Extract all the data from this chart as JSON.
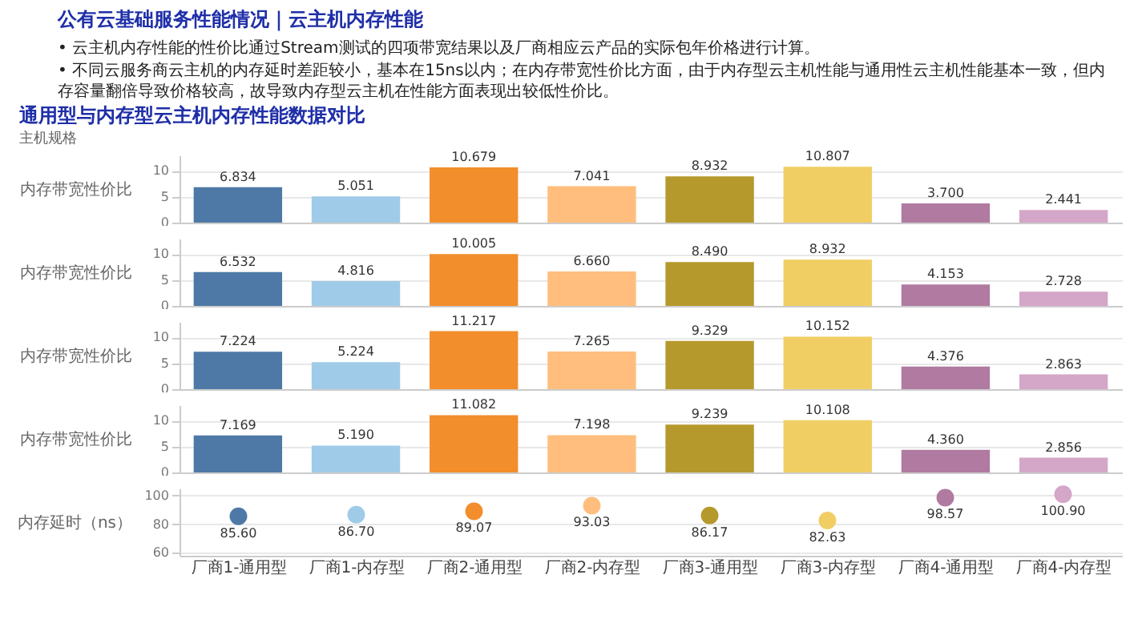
{
  "chart_data": [
    {
      "type": "other",
      "title": "公有云基础服务性能情况｜云主机内存性能",
      "annotations": [
        "•  云主机内存性能的性价比通过Stream测试的四项带宽结果以及厂商相应云产品的实际包年价格进行计算。",
        "•  不同云服务商云主机的内存延时差距较小，基本在15ns以内；在内存带宽性价比方面，由于内存型云主机性能与通用性云主机性能基本一致，但内存容量翻倍导致价格较高，故导致内存型云主机在性能方面表现出较低性价比。"
      ]
    },
    {
      "type": "bar",
      "title": "通用型与内存型云主机内存性能数据对比",
      "subtitle": "主机规格",
      "ylabel": "内存带宽性价比",
      "categories": [
        null,
        null,
        null,
        null,
        null,
        null,
        null,
        null
      ],
      "values": [
        6.834,
        5.051,
        10.679,
        7.041,
        8.932,
        10.807,
        3.7,
        2.441
      ],
      "value_labels": [
        "6.834",
        "5.051",
        "10.679",
        "7.041",
        "8.932",
        "10.807",
        "3.700",
        "2.441"
      ],
      "colors": [
        "#4e79a7",
        "#a0cbe8",
        "#f28e2b",
        "#ffbe7d",
        "#b6992d",
        "#f1ce63",
        "#b07aa1",
        "#d4a6c8"
      ],
      "ylim": [
        0,
        13
      ],
      "yticks": [
        0,
        5,
        10
      ],
      "grid": "y",
      "tick_labels": "y"
    },
    {
      "type": "bar",
      "ylabel": "内存带宽性价比",
      "categories": [
        null,
        null,
        null,
        null,
        null,
        null,
        null,
        null
      ],
      "values": [
        6.532,
        4.816,
        10.005,
        6.66,
        8.49,
        8.932,
        4.153,
        2.728
      ],
      "value_labels": [
        "6.532",
        "4.816",
        "10.005",
        "6.660",
        "8.490",
        "8.932",
        "4.153",
        "2.728"
      ],
      "colors": [
        "#4e79a7",
        "#a0cbe8",
        "#f28e2b",
        "#ffbe7d",
        "#b6992d",
        "#f1ce63",
        "#b07aa1",
        "#d4a6c8"
      ],
      "ylim": [
        0,
        13
      ],
      "yticks": [
        0,
        5,
        10
      ],
      "grid": "y",
      "tick_labels": "y"
    },
    {
      "type": "bar",
      "ylabel": "内存带宽性价比",
      "categories": [
        null,
        null,
        null,
        null,
        null,
        null,
        null,
        null
      ],
      "values": [
        7.224,
        5.224,
        11.217,
        7.265,
        9.329,
        10.152,
        4.376,
        2.863
      ],
      "value_labels": [
        "7.224",
        "5.224",
        "11.217",
        "7.265",
        "9.329",
        "10.152",
        "4.376",
        "2.863"
      ],
      "colors": [
        "#4e79a7",
        "#a0cbe8",
        "#f28e2b",
        "#ffbe7d",
        "#b6992d",
        "#f1ce63",
        "#b07aa1",
        "#d4a6c8"
      ],
      "ylim": [
        0,
        13
      ],
      "yticks": [
        0,
        5,
        10
      ],
      "grid": "y",
      "tick_labels": "y"
    },
    {
      "type": "bar",
      "ylabel": "内存带宽性价比",
      "categories": [
        null,
        null,
        null,
        null,
        null,
        null,
        null,
        null
      ],
      "values": [
        7.169,
        5.19,
        11.082,
        7.198,
        9.239,
        10.108,
        4.36,
        2.856
      ],
      "value_labels": [
        "7.169",
        "5.190",
        "11.082",
        "7.198",
        "9.239",
        "10.108",
        "4.360",
        "2.856"
      ],
      "colors": [
        "#4e79a7",
        "#a0cbe8",
        "#f28e2b",
        "#ffbe7d",
        "#b6992d",
        "#f1ce63",
        "#b07aa1",
        "#d4a6c8"
      ],
      "ylim": [
        0,
        13
      ],
      "yticks": [
        0,
        5,
        10
      ],
      "grid": "y",
      "tick_labels": "y"
    },
    {
      "type": "scatter",
      "ylabel": "内存延时（ns）",
      "categories": [
        "厂商1-通用型",
        "厂商1-内存型",
        "厂商2-通用型",
        "厂商2-内存型",
        "厂商3-通用型",
        "厂商3-内存型",
        "厂商4-通用型",
        "厂商4-内存型"
      ],
      "values": [
        85.6,
        86.7,
        89.07,
        93.03,
        86.17,
        82.63,
        98.57,
        100.9
      ],
      "value_labels": [
        "85.60",
        "86.70",
        "89.07",
        "93.03",
        "86.17",
        "82.63",
        "98.57",
        "100.90"
      ],
      "colors": [
        "#4e79a7",
        "#a0cbe8",
        "#f28e2b",
        "#ffbe7d",
        "#b6992d",
        "#f1ce63",
        "#b07aa1",
        "#d4a6c8"
      ],
      "ylim": [
        58,
        105
      ],
      "yticks": [
        60,
        80,
        100
      ],
      "grid": "y",
      "marker": "circle"
    }
  ]
}
